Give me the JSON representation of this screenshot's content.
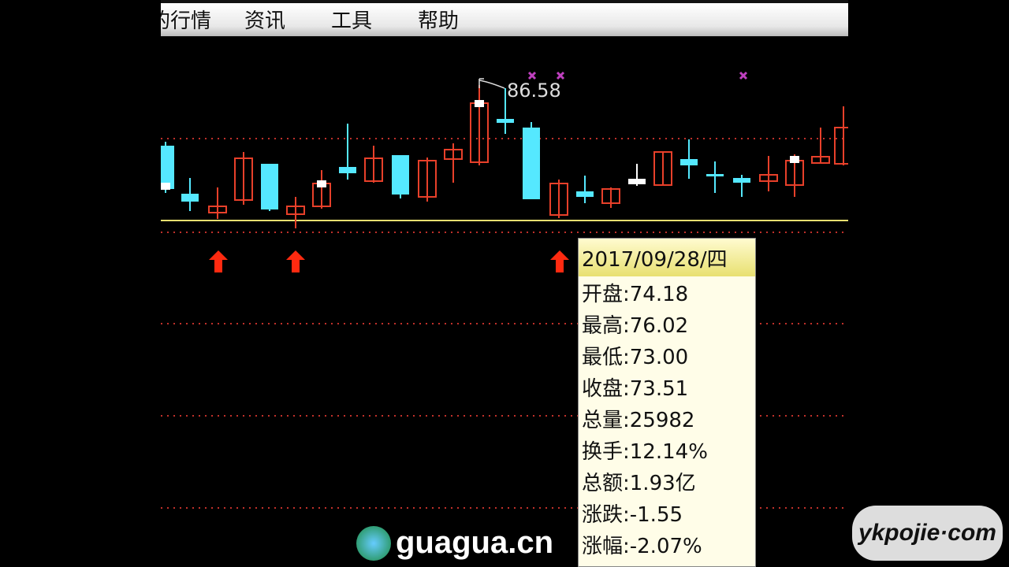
{
  "menu": [
    "行情",
    "资讯",
    "工具",
    "帮助"
  ],
  "menu_partial_prefix": "的",
  "chart": {
    "high_label": "86.58",
    "colors": {
      "up": "#e8402a",
      "down": "#55e8ff",
      "baseline": "#e8e070",
      "grid": "#c0302a",
      "marker": "#c040c0",
      "arrow": "#ff2a10"
    }
  },
  "tooltip": {
    "date": "2017/09/28/四",
    "lines": [
      "开盘:74.18",
      "最高:76.02",
      "最低:73.00",
      "收盘:73.51",
      "总量:25982",
      "换手:12.14%",
      "总额:1.93亿",
      "涨跌:-1.55",
      "涨幅:-2.07%"
    ]
  },
  "watermarks": {
    "guagua": "guagua.cn",
    "ykpojie": "ykpojie·com"
  }
}
